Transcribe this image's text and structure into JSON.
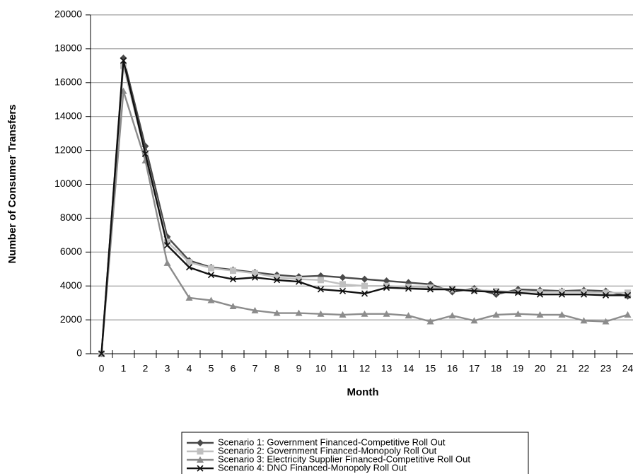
{
  "chart_data": {
    "type": "line",
    "xlabel": "Month",
    "ylabel": "Number of Consumer Transfers",
    "categories": [
      "0",
      "1",
      "2",
      "3",
      "4",
      "5",
      "6",
      "7",
      "8",
      "9",
      "10",
      "11",
      "12",
      "13",
      "14",
      "15",
      "16",
      "17",
      "18",
      "19",
      "20",
      "21",
      "22",
      "23",
      "24"
    ],
    "ylim": [
      0,
      20000
    ],
    "yticks": [
      0,
      2000,
      4000,
      6000,
      8000,
      10000,
      12000,
      14000,
      16000,
      18000,
      20000
    ],
    "grid": true,
    "series": [
      {
        "name": "Scenario 1: Government Financed-Competitive Roll Out",
        "color": "#4a4a4a",
        "marker": "diamond",
        "values": [
          0,
          17450,
          12250,
          6900,
          5500,
          5100,
          4950,
          4800,
          4650,
          4550,
          4600,
          4500,
          4400,
          4300,
          4200,
          4100,
          3650,
          3850,
          3500,
          3800,
          3750,
          3700,
          3750,
          3700,
          3400
        ]
      },
      {
        "name": "Scenario 2: Government Financed-Monopoly Roll Out",
        "color": "#c0c0c0",
        "marker": "square",
        "values": [
          0,
          17000,
          11800,
          6600,
          5400,
          5050,
          4900,
          4750,
          4500,
          4400,
          4350,
          4100,
          4000,
          4000,
          3950,
          3900,
          3800,
          3750,
          3700,
          3650,
          3650,
          3650,
          3650,
          3600,
          3600
        ]
      },
      {
        "name": "Scenario 3: Electricity Supplier Financed-Competitive Roll Out",
        "color": "#8c8c8c",
        "marker": "triangle",
        "values": [
          0,
          15500,
          11400,
          5350,
          3300,
          3150,
          2800,
          2550,
          2400,
          2400,
          2350,
          2300,
          2350,
          2350,
          2250,
          1900,
          2250,
          1950,
          2300,
          2350,
          2300,
          2300,
          1950,
          1900,
          2300
        ]
      },
      {
        "name": "Scenario 4: DNO Financed-Monopoly Roll Out",
        "color": "#111111",
        "marker": "x",
        "values": [
          0,
          17300,
          11800,
          6400,
          5100,
          4650,
          4400,
          4500,
          4350,
          4250,
          3800,
          3700,
          3550,
          3900,
          3850,
          3800,
          3800,
          3700,
          3650,
          3600,
          3500,
          3500,
          3500,
          3450,
          3450
        ]
      }
    ]
  }
}
